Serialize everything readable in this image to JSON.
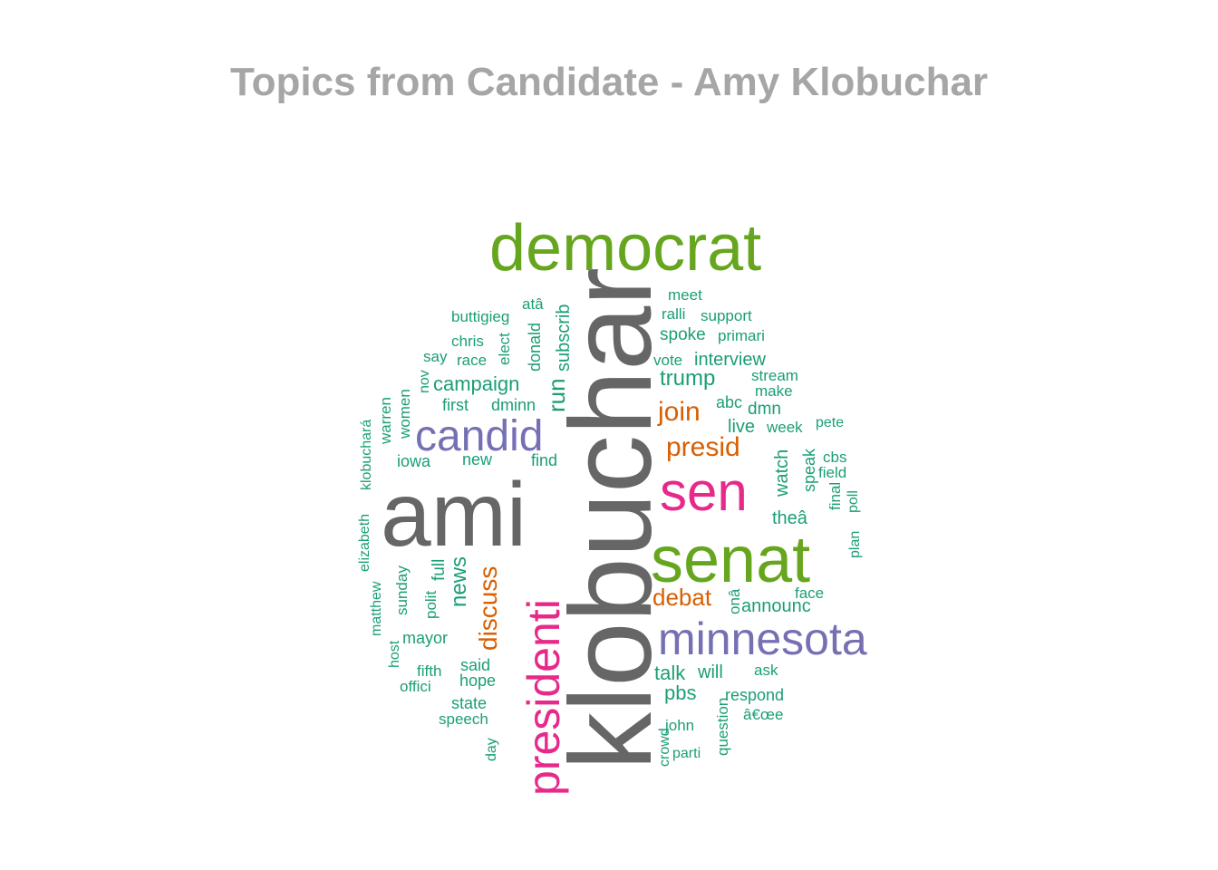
{
  "chart_data": {
    "type": "wordcloud",
    "title": "Topics from Candidate - Amy Klobuchar",
    "colors": {
      "gray": "#666666",
      "green": "#66a61e",
      "purple": "#7570b3",
      "pink": "#e7298a",
      "orange": "#d95f02",
      "teal": "#1b9e77"
    },
    "words": [
      {
        "text": "klobuchar",
        "color": "gray"
      },
      {
        "text": "ami",
        "color": "gray"
      },
      {
        "text": "democrat",
        "color": "green"
      },
      {
        "text": "senat",
        "color": "green"
      },
      {
        "text": "sen",
        "color": "pink"
      },
      {
        "text": "presidenti",
        "color": "pink"
      },
      {
        "text": "minnesota",
        "color": "purple"
      },
      {
        "text": "candid",
        "color": "purple"
      },
      {
        "text": "presid",
        "color": "orange"
      },
      {
        "text": "join",
        "color": "orange"
      },
      {
        "text": "debat",
        "color": "orange"
      },
      {
        "text": "discuss",
        "color": "orange"
      },
      {
        "text": "campaign",
        "color": "teal"
      },
      {
        "text": "run",
        "color": "teal"
      },
      {
        "text": "trump",
        "color": "teal"
      },
      {
        "text": "interview",
        "color": "teal"
      },
      {
        "text": "news",
        "color": "teal"
      },
      {
        "text": "announc",
        "color": "teal"
      },
      {
        "text": "talk",
        "color": "teal"
      },
      {
        "text": "pbs",
        "color": "teal"
      },
      {
        "text": "spoke",
        "color": "teal"
      },
      {
        "text": "subscrib",
        "color": "teal"
      },
      {
        "text": "donald",
        "color": "teal"
      },
      {
        "text": "meet",
        "color": "teal"
      },
      {
        "text": "ralli",
        "color": "teal"
      },
      {
        "text": "support",
        "color": "teal"
      },
      {
        "text": "primari",
        "color": "teal"
      },
      {
        "text": "vote",
        "color": "teal"
      },
      {
        "text": "stream",
        "color": "teal"
      },
      {
        "text": "make",
        "color": "teal"
      },
      {
        "text": "abc",
        "color": "teal"
      },
      {
        "text": "dmn",
        "color": "teal"
      },
      {
        "text": "live",
        "color": "teal"
      },
      {
        "text": "week",
        "color": "teal"
      },
      {
        "text": "pete",
        "color": "teal"
      },
      {
        "text": "watch",
        "color": "teal"
      },
      {
        "text": "speak",
        "color": "teal"
      },
      {
        "text": "cbs",
        "color": "teal"
      },
      {
        "text": "field",
        "color": "teal"
      },
      {
        "text": "final",
        "color": "teal"
      },
      {
        "text": "poll",
        "color": "teal"
      },
      {
        "text": "theâ",
        "color": "teal"
      },
      {
        "text": "plan",
        "color": "teal"
      },
      {
        "text": "face",
        "color": "teal"
      },
      {
        "text": "onâ",
        "color": "teal"
      },
      {
        "text": "will",
        "color": "teal"
      },
      {
        "text": "ask",
        "color": "teal"
      },
      {
        "text": "respond",
        "color": "teal"
      },
      {
        "text": "â€œe",
        "color": "teal"
      },
      {
        "text": "john",
        "color": "teal"
      },
      {
        "text": "question",
        "color": "teal"
      },
      {
        "text": "crowd",
        "color": "teal"
      },
      {
        "text": "parti",
        "color": "teal"
      },
      {
        "text": "atâ",
        "color": "teal"
      },
      {
        "text": "buttigieg",
        "color": "teal"
      },
      {
        "text": "chris",
        "color": "teal"
      },
      {
        "text": "elect",
        "color": "teal"
      },
      {
        "text": "say",
        "color": "teal"
      },
      {
        "text": "race",
        "color": "teal"
      },
      {
        "text": "first",
        "color": "teal"
      },
      {
        "text": "dminn",
        "color": "teal"
      },
      {
        "text": "nov",
        "color": "teal"
      },
      {
        "text": "women",
        "color": "teal"
      },
      {
        "text": "warren",
        "color": "teal"
      },
      {
        "text": "klobuchará",
        "color": "teal"
      },
      {
        "text": "iowa",
        "color": "teal"
      },
      {
        "text": "new",
        "color": "teal"
      },
      {
        "text": "find",
        "color": "teal"
      },
      {
        "text": "elizabeth",
        "color": "teal"
      },
      {
        "text": "full",
        "color": "teal"
      },
      {
        "text": "polit",
        "color": "teal"
      },
      {
        "text": "sunday",
        "color": "teal"
      },
      {
        "text": "matthew",
        "color": "teal"
      },
      {
        "text": "host",
        "color": "teal"
      },
      {
        "text": "mayor",
        "color": "teal"
      },
      {
        "text": "fifth",
        "color": "teal"
      },
      {
        "text": "offici",
        "color": "teal"
      },
      {
        "text": "said",
        "color": "teal"
      },
      {
        "text": "hope",
        "color": "teal"
      },
      {
        "text": "state",
        "color": "teal"
      },
      {
        "text": "speech",
        "color": "teal"
      },
      {
        "text": "day",
        "color": "teal"
      }
    ]
  }
}
